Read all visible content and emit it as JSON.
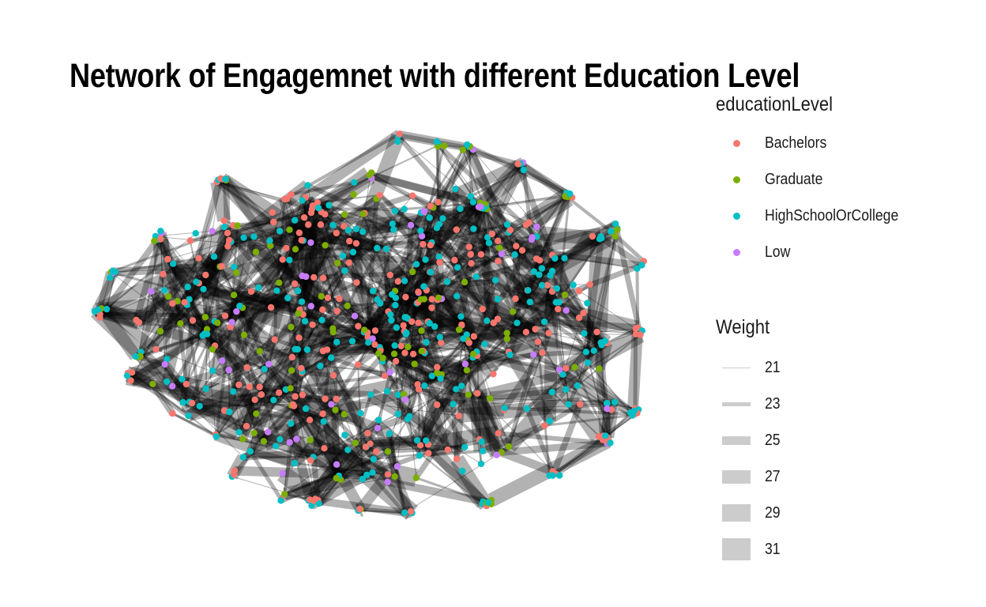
{
  "title": "Network of Engagemnet with different Education Level",
  "legend_education": {
    "title": "educationLevel",
    "items": [
      {
        "label": "Bachelors",
        "color": "#F8766D"
      },
      {
        "label": "Graduate",
        "color": "#7CAE00"
      },
      {
        "label": "HighSchoolOrCollege",
        "color": "#00BFC4"
      },
      {
        "label": "Low",
        "color": "#C77CFF"
      }
    ]
  },
  "legend_weight": {
    "title": "Weight",
    "items": [
      {
        "label": "21",
        "value": 21
      },
      {
        "label": "23",
        "value": 23
      },
      {
        "label": "25",
        "value": 25
      },
      {
        "label": "27",
        "value": 27
      },
      {
        "label": "29",
        "value": 29
      },
      {
        "label": "31",
        "value": 31
      }
    ]
  },
  "colors": {
    "edge": "#000000",
    "weight_key": "#cccccc",
    "background": "#ffffff"
  }
}
